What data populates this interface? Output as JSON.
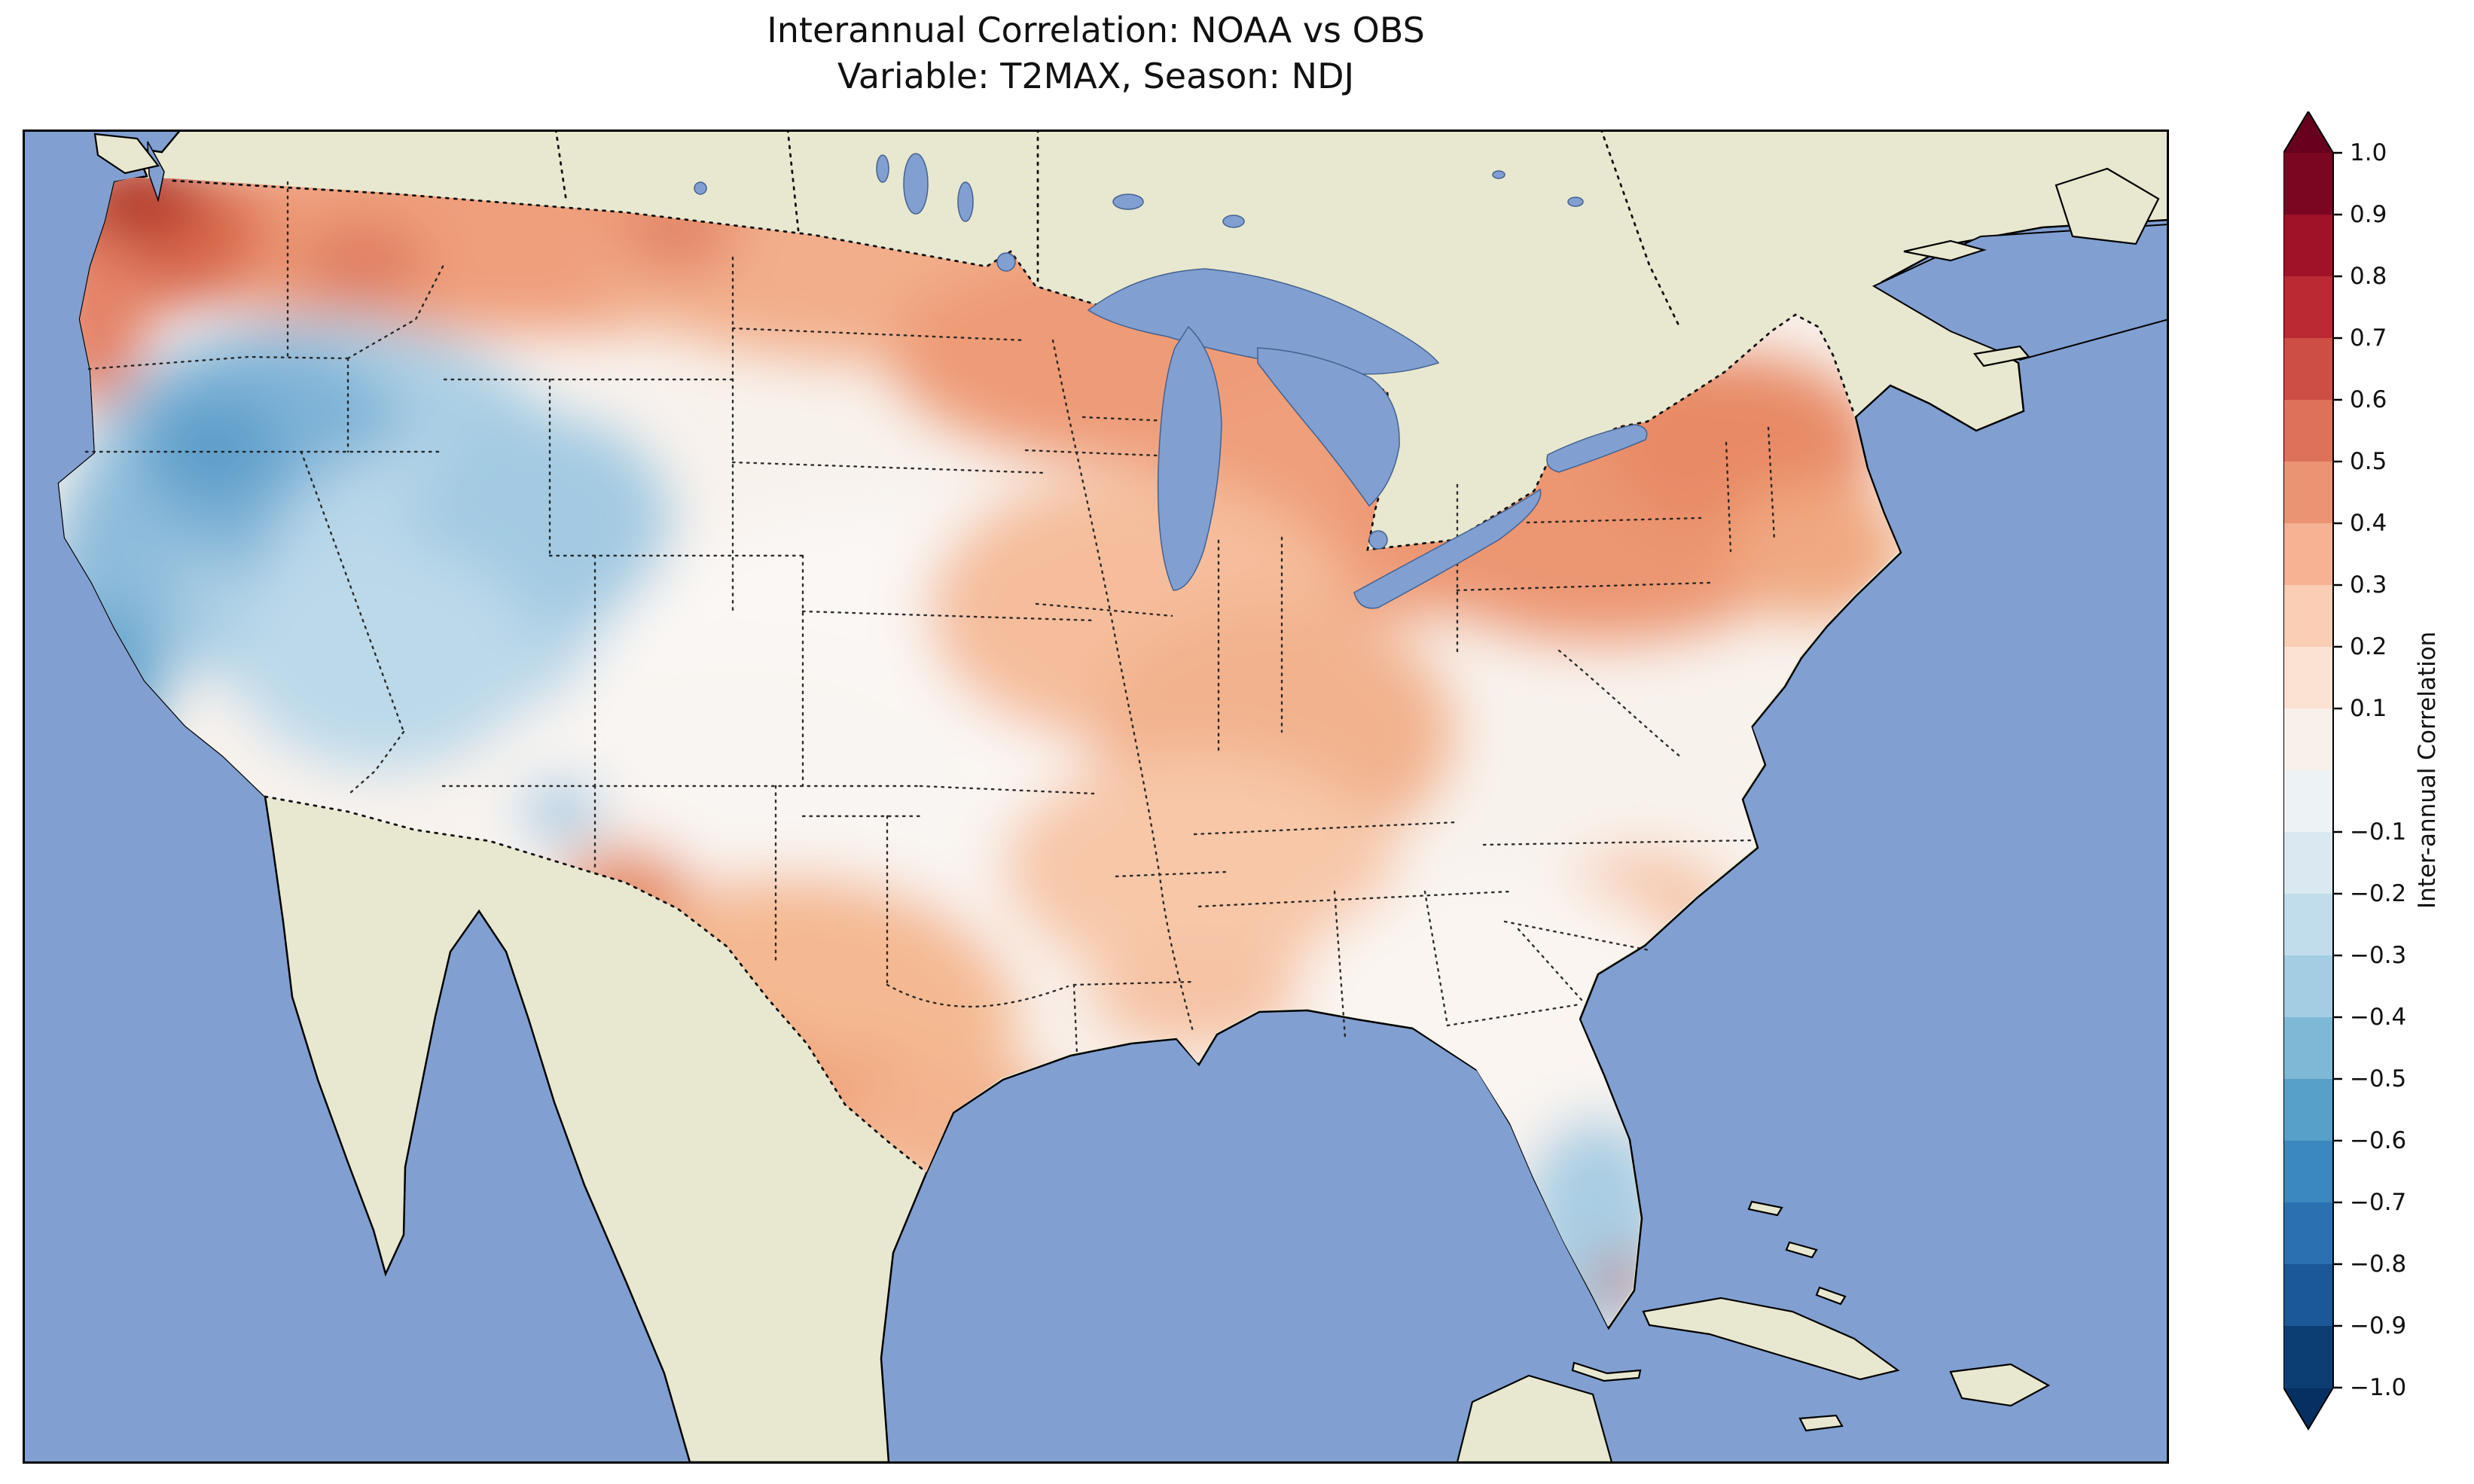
{
  "figure": {
    "title_line1": "Interannual Correlation: NOAA vs OBS",
    "title_line2": "Variable: T2MAX, Season: NDJ"
  },
  "colorbar": {
    "label": "Inter-annual Correlation",
    "range": [
      -1.0,
      1.0
    ],
    "ticks": [
      {
        "label": "1.0",
        "value": 1.0
      },
      {
        "label": "0.9",
        "value": 0.9
      },
      {
        "label": "0.8",
        "value": 0.8
      },
      {
        "label": "0.7",
        "value": 0.7
      },
      {
        "label": "0.6",
        "value": 0.6
      },
      {
        "label": "0.5",
        "value": 0.5
      },
      {
        "label": "0.4",
        "value": 0.4
      },
      {
        "label": "0.3",
        "value": 0.3
      },
      {
        "label": "0.2",
        "value": 0.2
      },
      {
        "label": "0.1",
        "value": 0.1
      },
      {
        "label": "−0.1",
        "value": -0.1
      },
      {
        "label": "−0.2",
        "value": -0.2
      },
      {
        "label": "−0.3",
        "value": -0.3
      },
      {
        "label": "−0.4",
        "value": -0.4
      },
      {
        "label": "−0.5",
        "value": -0.5
      },
      {
        "label": "−0.6",
        "value": -0.6
      },
      {
        "label": "−0.7",
        "value": -0.7
      },
      {
        "label": "−0.8",
        "value": -0.8
      },
      {
        "label": "−0.9",
        "value": -0.9
      },
      {
        "label": "−1.0",
        "value": -1.0
      }
    ],
    "bin_colors_top_to_bottom": [
      "#7a0622",
      "#9f1228",
      "#bb2a33",
      "#cd4e44",
      "#dd715a",
      "#ec9374",
      "#f6b293",
      "#facdb5",
      "#fbe2d3",
      "#f8f0eb",
      "#edf2f5",
      "#dae9f1",
      "#c1ddeb",
      "#a2cde2",
      "#7eb8d7",
      "#57a0ca",
      "#3a88bd",
      "#2a71b2",
      "#1a5899",
      "#0c3e74"
    ],
    "over_color": "#67001f",
    "under_color": "#053061"
  },
  "map": {
    "ocean_color": "#819fd1",
    "land_color": "#e8e8d0",
    "coastline_color": "#000000",
    "state_border_style": "dotted",
    "field_base_color": "#f8f2ed"
  },
  "chart_data": {
    "type": "heatmap",
    "title": "Interannual Correlation: NOAA vs OBS",
    "subtitle": "Variable: T2MAX, Season: NDJ",
    "variable": "T2MAX",
    "season": "NDJ",
    "datasets_compared": [
      "NOAA",
      "OBS"
    ],
    "region_shown": "Contiguous United States with surrounding Canada, Mexico, Gulf of Mexico and Atlantic",
    "colormap": "RdBu_r",
    "colorbar_label": "Inter-annual Correlation",
    "value_range": [
      -1.0,
      1.0
    ],
    "colorbar_tick_values": [
      1.0,
      0.9,
      0.8,
      0.7,
      0.6,
      0.5,
      0.4,
      0.3,
      0.2,
      0.1,
      -0.1,
      -0.2,
      -0.3,
      -0.4,
      -0.5,
      -0.6,
      -0.7,
      -0.8,
      -0.9,
      -1.0
    ],
    "legend_position": "right vertical colorbar with pointed over/under extensions",
    "regional_values_estimated": [
      {
        "region": "Pacific Northwest coast (Puget Sound, WA)",
        "correlation": 0.7
      },
      {
        "region": "Oregon coast",
        "correlation": 0.4
      },
      {
        "region": "Northern Rockies / Montana",
        "correlation": 0.4
      },
      {
        "region": "Northern Plains (ND/SD)",
        "correlation": 0.3
      },
      {
        "region": "Upper Midwest (MN/WI/MI)",
        "correlation": 0.4
      },
      {
        "region": "Northeast (NY, New England)",
        "correlation": 0.4
      },
      {
        "region": "Ohio Valley / Mid-Atlantic",
        "correlation": 0.3
      },
      {
        "region": "Great Basin / Interior West (NV/UT/ID/WY/CO)",
        "correlation": -0.4
      },
      {
        "region": "California coast",
        "correlation": -0.4
      },
      {
        "region": "Central and Southern Plains (KS/NE/OK)",
        "correlation": 0.0
      },
      {
        "region": "Texas",
        "correlation": 0.2
      },
      {
        "region": "Lower Mississippi / Gulf Coast",
        "correlation": 0.1
      },
      {
        "region": "Southeast (GA/Carolinas)",
        "correlation": 0.1
      },
      {
        "region": "South Florida",
        "correlation": -0.3
      },
      {
        "region": "Miami area spot",
        "correlation": 0.5
      }
    ]
  }
}
